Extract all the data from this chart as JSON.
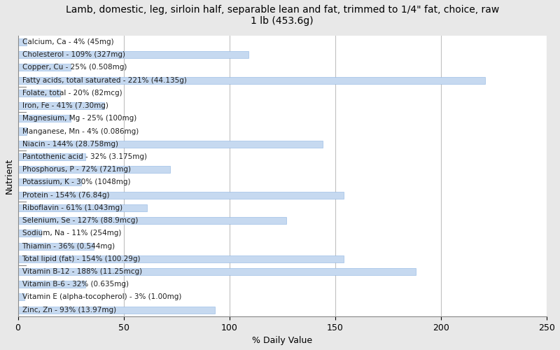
{
  "title": "Lamb, domestic, leg, sirloin half, separable lean and fat, trimmed to 1/4\" fat, choice, raw\n1 lb (453.6g)",
  "xlabel": "% Daily Value",
  "ylabel": "Nutrient",
  "xlim": [
    0,
    250
  ],
  "xticks": [
    0,
    50,
    100,
    150,
    200,
    250
  ],
  "bar_color": "#c6d9f0",
  "edge_color": "#8db4e2",
  "background_color": "#e8e8e8",
  "plot_background": "#ffffff",
  "nutrients": [
    "Calcium, Ca - 4% (45mg)",
    "Cholesterol - 109% (327mg)",
    "Copper, Cu - 25% (0.508mg)",
    "Fatty acids, total saturated - 221% (44.135g)",
    "Folate, total - 20% (82mcg)",
    "Iron, Fe - 41% (7.30mg)",
    "Magnesium, Mg - 25% (100mg)",
    "Manganese, Mn - 4% (0.086mg)",
    "Niacin - 144% (28.758mg)",
    "Pantothenic acid - 32% (3.175mg)",
    "Phosphorus, P - 72% (721mg)",
    "Potassium, K - 30% (1048mg)",
    "Protein - 154% (76.84g)",
    "Riboflavin - 61% (1.043mg)",
    "Selenium, Se - 127% (88.9mcg)",
    "Sodium, Na - 11% (254mg)",
    "Thiamin - 36% (0.544mg)",
    "Total lipid (fat) - 154% (100.29g)",
    "Vitamin B-12 - 188% (11.25mcg)",
    "Vitamin B-6 - 32% (0.635mg)",
    "Vitamin E (alpha-tocopherol) - 3% (1.00mg)",
    "Zinc, Zn - 93% (13.97mg)"
  ],
  "values": [
    4,
    109,
    25,
    221,
    20,
    41,
    25,
    4,
    144,
    32,
    72,
    30,
    154,
    61,
    127,
    11,
    36,
    154,
    188,
    32,
    3,
    93
  ],
  "title_fontsize": 10,
  "label_fontsize": 7.5,
  "tick_fontsize": 9,
  "axis_label_fontsize": 9,
  "bar_height": 0.55,
  "ytick_positions_from_bottom": [
    3,
    8,
    12,
    15,
    17
  ]
}
